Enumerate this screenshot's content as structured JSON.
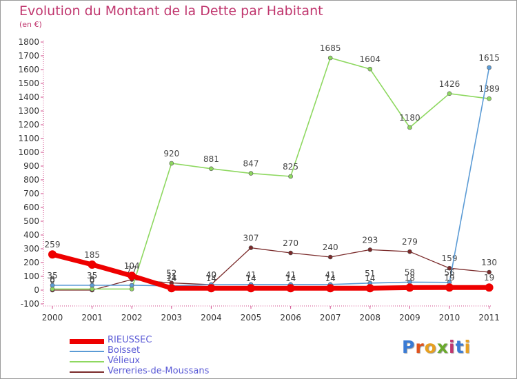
{
  "header": {
    "title": "Evolution du Montant de la Dette par Habitant",
    "subtitle": "(en €)"
  },
  "logo": {
    "letters": [
      "P",
      "r",
      "o",
      "x",
      "i",
      "t",
      "i"
    ],
    "colors": [
      "#3a7bd5",
      "#e0531c",
      "#e8a020",
      "#6aaa2c",
      "#c0366e",
      "#3a7bd5",
      "#e8a020"
    ]
  },
  "chart_data": {
    "type": "line",
    "title": "Evolution du Montant de la Dette par Habitant",
    "subtitle": "(en €)",
    "xlabel": "",
    "ylabel": "",
    "categories": [
      "2000",
      "2001",
      "2002",
      "2003",
      "2004",
      "2005",
      "2006",
      "2007",
      "2008",
      "2009",
      "2010",
      "2011"
    ],
    "ylim": [
      -100,
      1800
    ],
    "ytick_step": 100,
    "grid": false,
    "legend_position": "bottom-left",
    "series": [
      {
        "name": "Verreries-de-Moussans",
        "color": "#7a2a2a",
        "width": 1.3,
        "values": [
          0,
          0,
          77,
          52,
          40,
          307,
          270,
          240,
          293,
          279,
          159,
          130
        ],
        "labels": [
          "0",
          "0",
          "77",
          "52",
          "40",
          "307",
          "270",
          "240",
          "293",
          "279",
          "159",
          "130"
        ]
      },
      {
        "name": "Vélieux",
        "color": "#8ed860",
        "width": 1.6,
        "values": [
          8,
          8,
          8,
          920,
          881,
          847,
          825,
          1685,
          1604,
          1180,
          1426,
          1389
        ],
        "labels": [
          "8",
          "8",
          "",
          "920",
          "881",
          "847",
          "825",
          "1685",
          "1604",
          "1180",
          "1426",
          "1389"
        ]
      },
      {
        "name": "Boisset",
        "color": "#5b9bd5",
        "width": 1.6,
        "values": [
          35,
          35,
          35,
          31,
          40,
          41,
          41,
          41,
          51,
          58,
          56,
          1615
        ],
        "labels": [
          "35",
          "35",
          "",
          "31",
          "40",
          "41",
          "41",
          "41",
          "51",
          "58",
          "56",
          "1615"
        ]
      },
      {
        "name": "RIEUSSEC",
        "color": "#ee0000",
        "width": 7,
        "values": [
          259,
          185,
          104,
          14,
          14,
          14,
          14,
          14,
          14,
          18,
          19,
          19
        ],
        "labels": [
          "259",
          "185",
          "104",
          "14",
          "14",
          "14",
          "14",
          "14",
          "14",
          "18",
          "19",
          "19"
        ]
      }
    ]
  },
  "legend": {
    "items": [
      {
        "name": "RIEUSSEC",
        "color": "#ee0000",
        "thickness": 7
      },
      {
        "name": "Boisset",
        "color": "#5b9bd5",
        "thickness": 2
      },
      {
        "name": "Vélieux",
        "color": "#8ed860",
        "thickness": 2
      },
      {
        "name": "Verreries-de-Moussans",
        "color": "#7a2a2a",
        "thickness": 2
      }
    ]
  }
}
